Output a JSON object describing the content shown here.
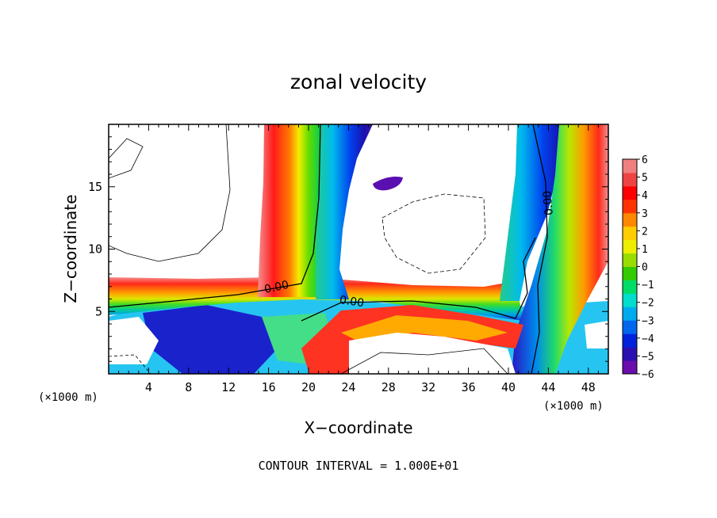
{
  "chart_data": {
    "type": "heatmap",
    "title": "zonal velocity",
    "xlabel": "X−coordinate",
    "ylabel": "Z−coordinate",
    "x_multiplier": "(×1000 m)",
    "z_multiplier": "(×1000 m)",
    "xlim": [
      0,
      50
    ],
    "ylim": [
      0,
      20
    ],
    "x_ticks": [
      4,
      8,
      12,
      16,
      20,
      24,
      28,
      32,
      36,
      40,
      44,
      48
    ],
    "y_ticks": [
      5,
      10,
      15
    ],
    "colorbar": {
      "min": -6,
      "max": 6,
      "ticks": [
        "6",
        "5",
        "4",
        "3",
        "2",
        "1",
        "0",
        "−1",
        "−2",
        "−3",
        "−4",
        "−5",
        "−6"
      ],
      "colors": [
        "#6a0dad",
        "#2a0fb0",
        "#0022dd",
        "#0066ee",
        "#00aaee",
        "#00ddcc",
        "#00dd66",
        "#33cc00",
        "#99dd00",
        "#eeee00",
        "#ffcc00",
        "#ff8800",
        "#ff3300",
        "#ff0000",
        "#ee4444",
        "#f08080"
      ]
    },
    "contour_labels": [
      "0.00",
      "0.00",
      "0.00"
    ],
    "footer": "CONTOUR INTERVAL = 1.000E+01"
  }
}
